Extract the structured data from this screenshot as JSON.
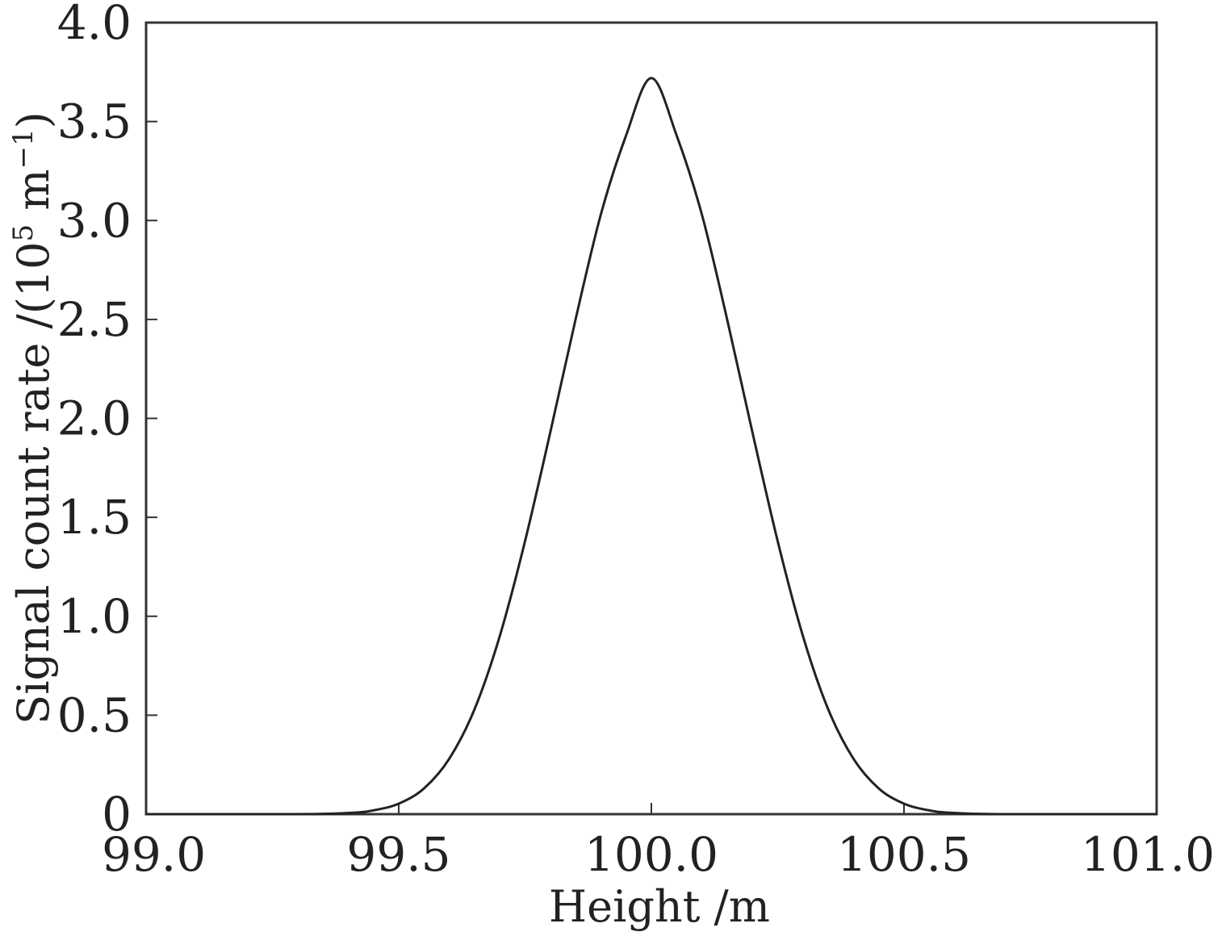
{
  "chart_data": {
    "type": "line",
    "title": "",
    "xlabel": "Height /m",
    "ylabel": {
      "prefix": "Signal count rate /(10",
      "exp": "5",
      "mid": " m",
      "exp2": "−1",
      "suffix": ")"
    },
    "xlim": [
      99.0,
      101.0
    ],
    "ylim": [
      0,
      4.0
    ],
    "xticks": [
      99.0,
      99.5,
      100.0,
      100.5,
      101.0
    ],
    "xtick_labels": [
      "99.0",
      "99.5",
      "100.0",
      "100.5",
      "101.0"
    ],
    "yticks": [
      0,
      0.5,
      1.0,
      1.5,
      2.0,
      2.5,
      3.0,
      3.5,
      4.0
    ],
    "ytick_labels": [
      "0",
      "0.5",
      "1.0",
      "1.5",
      "2.0",
      "2.5",
      "3.0",
      "3.5",
      "4.0"
    ],
    "grid": false,
    "legend": "none",
    "series": [
      {
        "x": [
          99.0,
          99.3,
          99.4,
          99.45,
          99.5,
          99.55,
          99.6,
          99.65,
          99.7,
          99.75,
          99.8,
          99.85,
          99.9,
          99.95,
          100.0,
          100.05,
          100.1,
          100.15,
          100.2,
          100.25,
          100.3,
          100.35,
          100.4,
          100.45,
          100.5,
          100.55,
          100.6,
          100.7,
          101.0
        ],
        "y": [
          0.0,
          0.0,
          0.006,
          0.019,
          0.053,
          0.13,
          0.28,
          0.53,
          0.9,
          1.38,
          1.93,
          2.5,
          3.03,
          3.43,
          3.72,
          3.43,
          3.03,
          2.5,
          1.93,
          1.38,
          0.9,
          0.53,
          0.28,
          0.13,
          0.053,
          0.019,
          0.006,
          0.0,
          0.0
        ]
      }
    ]
  },
  "colors": {
    "line": "#222222",
    "axis": "#333333"
  }
}
